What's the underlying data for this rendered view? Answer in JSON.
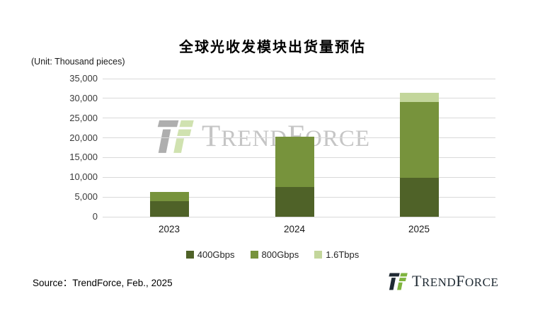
{
  "title": "全球光收发模块出货量预估",
  "unit_label": "(Unit: Thousand pieces)",
  "source_text": "Source：TrendForce, Feb., 2025",
  "watermark": {
    "parts": {
      "t": "T",
      "rend": "REND",
      "f": "F",
      "orce": "ORCE"
    }
  },
  "footer_logo": {
    "parts": {
      "t": "T",
      "rend": "REND",
      "f": "F",
      "orce": "ORCE"
    }
  },
  "colors": {
    "series_400g": "#4F6228",
    "series_800g": "#77933C",
    "series_1_6t": "#C3D69B",
    "gridline": "#D9D9D9",
    "logo_dark": "#1F2A33",
    "logo_green": "#7FB43E",
    "watermark_gray": "#BFBFBF",
    "watermark_icon_gray": "#A6A6A6",
    "watermark_icon_green": "#CBDFA8"
  },
  "chart_data": {
    "type": "bar",
    "stacked": true,
    "title": "全球光收发模块出货量预估",
    "unit": "Thousand pieces",
    "categories": [
      "2023",
      "2024",
      "2025"
    ],
    "series": [
      {
        "name": "400Gbps",
        "color": "#4F6228",
        "values": [
          4000,
          7600,
          9800
        ]
      },
      {
        "name": "800Gbps",
        "color": "#77933C",
        "values": [
          2300,
          12700,
          19300
        ]
      },
      {
        "name": "1.6Tbps",
        "color": "#C3D69B",
        "values": [
          0,
          0,
          2400
        ]
      }
    ],
    "totals": [
      6300,
      20300,
      31500
    ],
    "xlabel": "",
    "ylabel": "(Unit: Thousand pieces)",
    "ylim": [
      0,
      35000
    ],
    "ytick_interval": 5000,
    "yticks": [
      "0",
      "5,000",
      "10,000",
      "15,000",
      "20,000",
      "25,000",
      "30,000",
      "35,000"
    ],
    "grid": true,
    "legend_position": "bottom",
    "legend": [
      "400Gbps",
      "800Gbps",
      "1.6Tbps"
    ]
  }
}
